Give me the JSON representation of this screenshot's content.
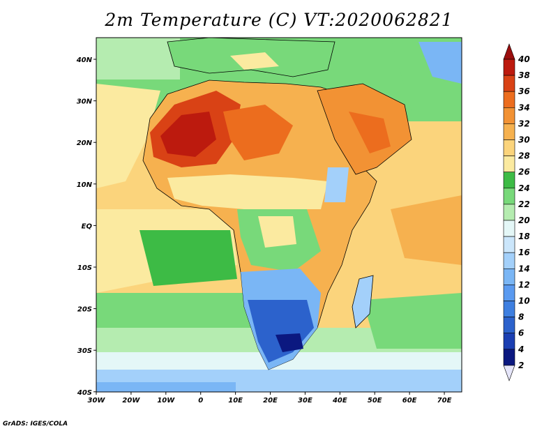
{
  "title": "2m Temperature (C) VT:2020062821",
  "credit": "GrADS: IGES/COLA",
  "map": {
    "lon_labels": [
      "30W",
      "20W",
      "10W",
      "0",
      "10E",
      "20E",
      "30E",
      "40E",
      "50E",
      "60E",
      "70E"
    ],
    "lat_labels": [
      "40N",
      "30N",
      "20N",
      "10N",
      "EQ",
      "10S",
      "20S",
      "30S",
      "40S"
    ]
  },
  "colorbar": {
    "labels": [
      "2",
      "4",
      "6",
      "8",
      "10",
      "12",
      "14",
      "16",
      "18",
      "20",
      "22",
      "24",
      "26",
      "28",
      "30",
      "32",
      "34",
      "36",
      "38",
      "40"
    ],
    "colors": [
      "#e6e6fa",
      "#0b1880",
      "#1b3fb2",
      "#2c62cc",
      "#3e7fe0",
      "#5a9af0",
      "#7ab6f5",
      "#a3d0fa",
      "#cbe6fb",
      "#e4f7f7",
      "#b5ecb0",
      "#78d97a",
      "#3dbb45",
      "#fbeaa0",
      "#fbd47c",
      "#f6b14f",
      "#f29234",
      "#ec6d1e",
      "#d94215",
      "#bc1a0e",
      "#9b0e0e"
    ]
  }
}
